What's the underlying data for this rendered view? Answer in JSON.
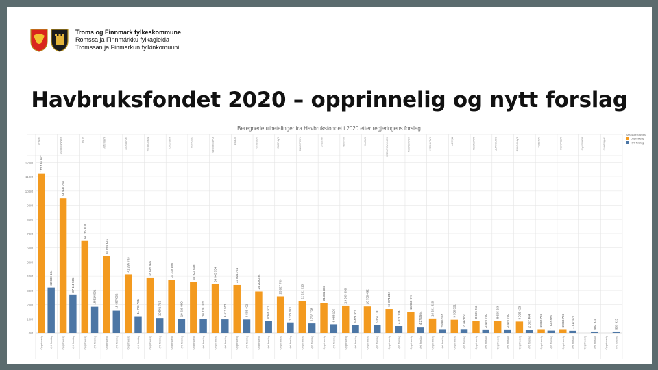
{
  "header": {
    "org_line_1": "Troms og Finnmark fylkeskommune",
    "org_line_2": "Romssa ja Finnmárkku fylkagielda",
    "org_line_3": "Tromssan ja Finmarkun fylkinkomuuni"
  },
  "slide_title": "Havbruksfondet 2020 – opprinnelig og nytt forslag",
  "colors": {
    "opprinnelig": "#f39a1f",
    "nytt": "#4c76a5",
    "frame": "#5b6b6e"
  },
  "chart_data": {
    "type": "bar",
    "title": "Beregnede utbetalinger fra Havbruksfondet i 2020 etter regjeringens forslag",
    "legend_title": "Measure Names",
    "legend_position": "top-right",
    "grid": true,
    "ylim": [
      0,
      125000000
    ],
    "yticks": [
      "0M",
      "10M",
      "20M",
      "30M",
      "40M",
      "50M",
      "60M",
      "70M",
      "80M",
      "90M",
      "100M",
      "110M",
      "120M"
    ],
    "categories": [
      "SENJA",
      "HAMMERFEST",
      "ALTA",
      "KARLSØY",
      "SKJERVØY",
      "NORDREISA",
      "HARSTAD",
      "TROMSØ",
      "KVÆNANGEN",
      "LOPPA",
      "SØRREISA",
      "KÅFJORD",
      "TJELDSUND",
      "IBESTAD",
      "LYNGEN",
      "HASVIK",
      "SØR-VARANGER",
      "GRATANGEN",
      "SALANGEN",
      "MÅSØY",
      "LAVANGEN",
      "NORDKAPP",
      "BÅTSFJORD",
      "SALTDAL",
      "KARASJOK",
      "BERLEVÅG",
      "SKÅNLAND"
    ],
    "series": [
      {
        "name": "Opprinnelig",
        "x_label": "Opprinnelig",
        "values": [
          112136867,
          94990268,
          64789003,
          54099621,
          41295733,
          38645995,
          37278080,
          35923638,
          34345334,
          33804724,
          29209294,
          25827769,
          22231913,
          21231303,
          19335336,
          18730492,
          16874242,
          14960974,
          10201526,
          9330321,
          8605256,
          8605256,
          8025423,
          2662703,
          2663703,
          1,
          1
        ],
        "value_labels": [
          "112 136 867",
          "94 990 268",
          "64 789 003",
          "54 099 621",
          "41 295 733",
          "38 645 995",
          "37 278 080",
          "35 923 638",
          "34 345 334",
          "33 804 724",
          "29 209 294",
          "25 827 769",
          "22 231 913",
          "21 231 303",
          "19 335 336",
          "18 730 492",
          "16 874 242",
          "14 960 974",
          "10 201 526",
          "9 330 321",
          "8 605 256",
          "8 605 256",
          "8 025 423",
          "2 662 703",
          "2 663 703",
          "",
          ""
        ]
      },
      {
        "name": "Nytt forslag",
        "x_label": "Nytt forslag",
        "values": [
          32030134,
          27111505,
          18514991,
          15657032,
          11798781,
          10541713,
          10020980,
          10128182,
          9612912,
          9508492,
          8365513,
          7376363,
          6703728,
          6068105,
          5473927,
          5356130,
          4821134,
          4274564,
          2686151,
          2742651,
          2470700,
          2470700,
          2302464,
          1643886,
          1517577,
          983915,
          983915
        ],
        "value_labels": [
          "32 030 134",
          "27 111 505",
          "18 514 991",
          "15 657 032",
          "11 798 781",
          "10 541 713",
          "10 020 980",
          "10 128 182",
          "9 612 912",
          "9 508 492",
          "8 365 513",
          "7 376 363",
          "6 703 728",
          "6 068 105",
          "5 473 927",
          "5 356 130",
          "4 821 134",
          "4 274 564",
          "2 686 151",
          "2 742 651",
          "2 470 700",
          "2 470 700",
          "2 302 464",
          "1 643 886",
          "1 517 577",
          "983 915",
          "983 915"
        ]
      }
    ]
  }
}
